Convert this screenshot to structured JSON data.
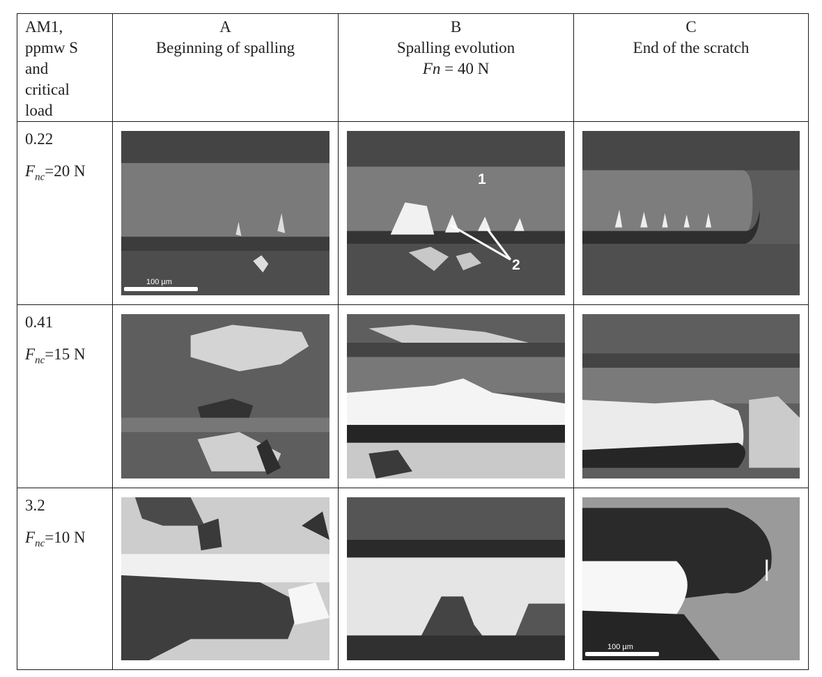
{
  "header": {
    "first_col": [
      "AM1,",
      "ppmw S",
      "and",
      "critical",
      "load"
    ],
    "columns": [
      {
        "letter": "A",
        "title": "Beginning of spalling",
        "sub": ""
      },
      {
        "letter": "B",
        "title": "Spalling evolution",
        "sub_italic": "Fn",
        "sub_rest": " = 40 N"
      },
      {
        "letter": "C",
        "title": "End of the scratch",
        "sub": ""
      }
    ]
  },
  "rows": [
    {
      "sulfur": "0.22",
      "load_sym": "F",
      "load_sub": "nc",
      "load_val": "=20 N"
    },
    {
      "sulfur": "0.41",
      "load_sym": "F",
      "load_sub": "nc",
      "load_val": "=15 N"
    },
    {
      "sulfur": "3.2",
      "load_sym": "F",
      "load_sub": "nc",
      "load_val": "=10 N"
    }
  ],
  "annotations": {
    "label_1": "1",
    "label_2": "2",
    "scale_text": "100 µm"
  }
}
